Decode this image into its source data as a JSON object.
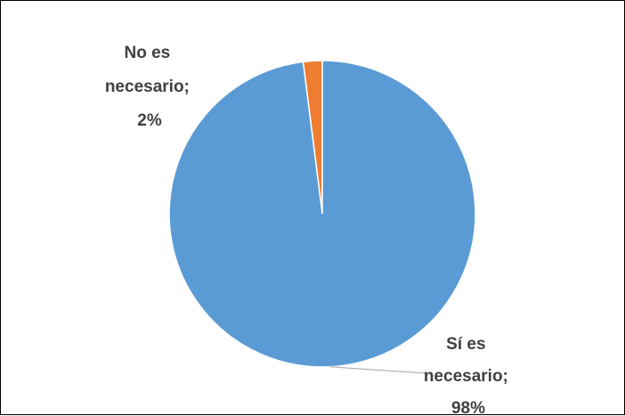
{
  "chart_data": {
    "type": "pie",
    "title": "",
    "slices": [
      {
        "label": "Sí es necesario",
        "value": 98,
        "value_text": "98%",
        "color": "#5B9BD5",
        "label_lines": [
          "Sí es",
          "necesario;",
          "98%"
        ]
      },
      {
        "label": "No es necesario",
        "value": 2,
        "value_text": "2%",
        "color": "#ED7D31",
        "label_lines": [
          "No es",
          "necesario;",
          "2%"
        ]
      }
    ],
    "legend": "none"
  }
}
